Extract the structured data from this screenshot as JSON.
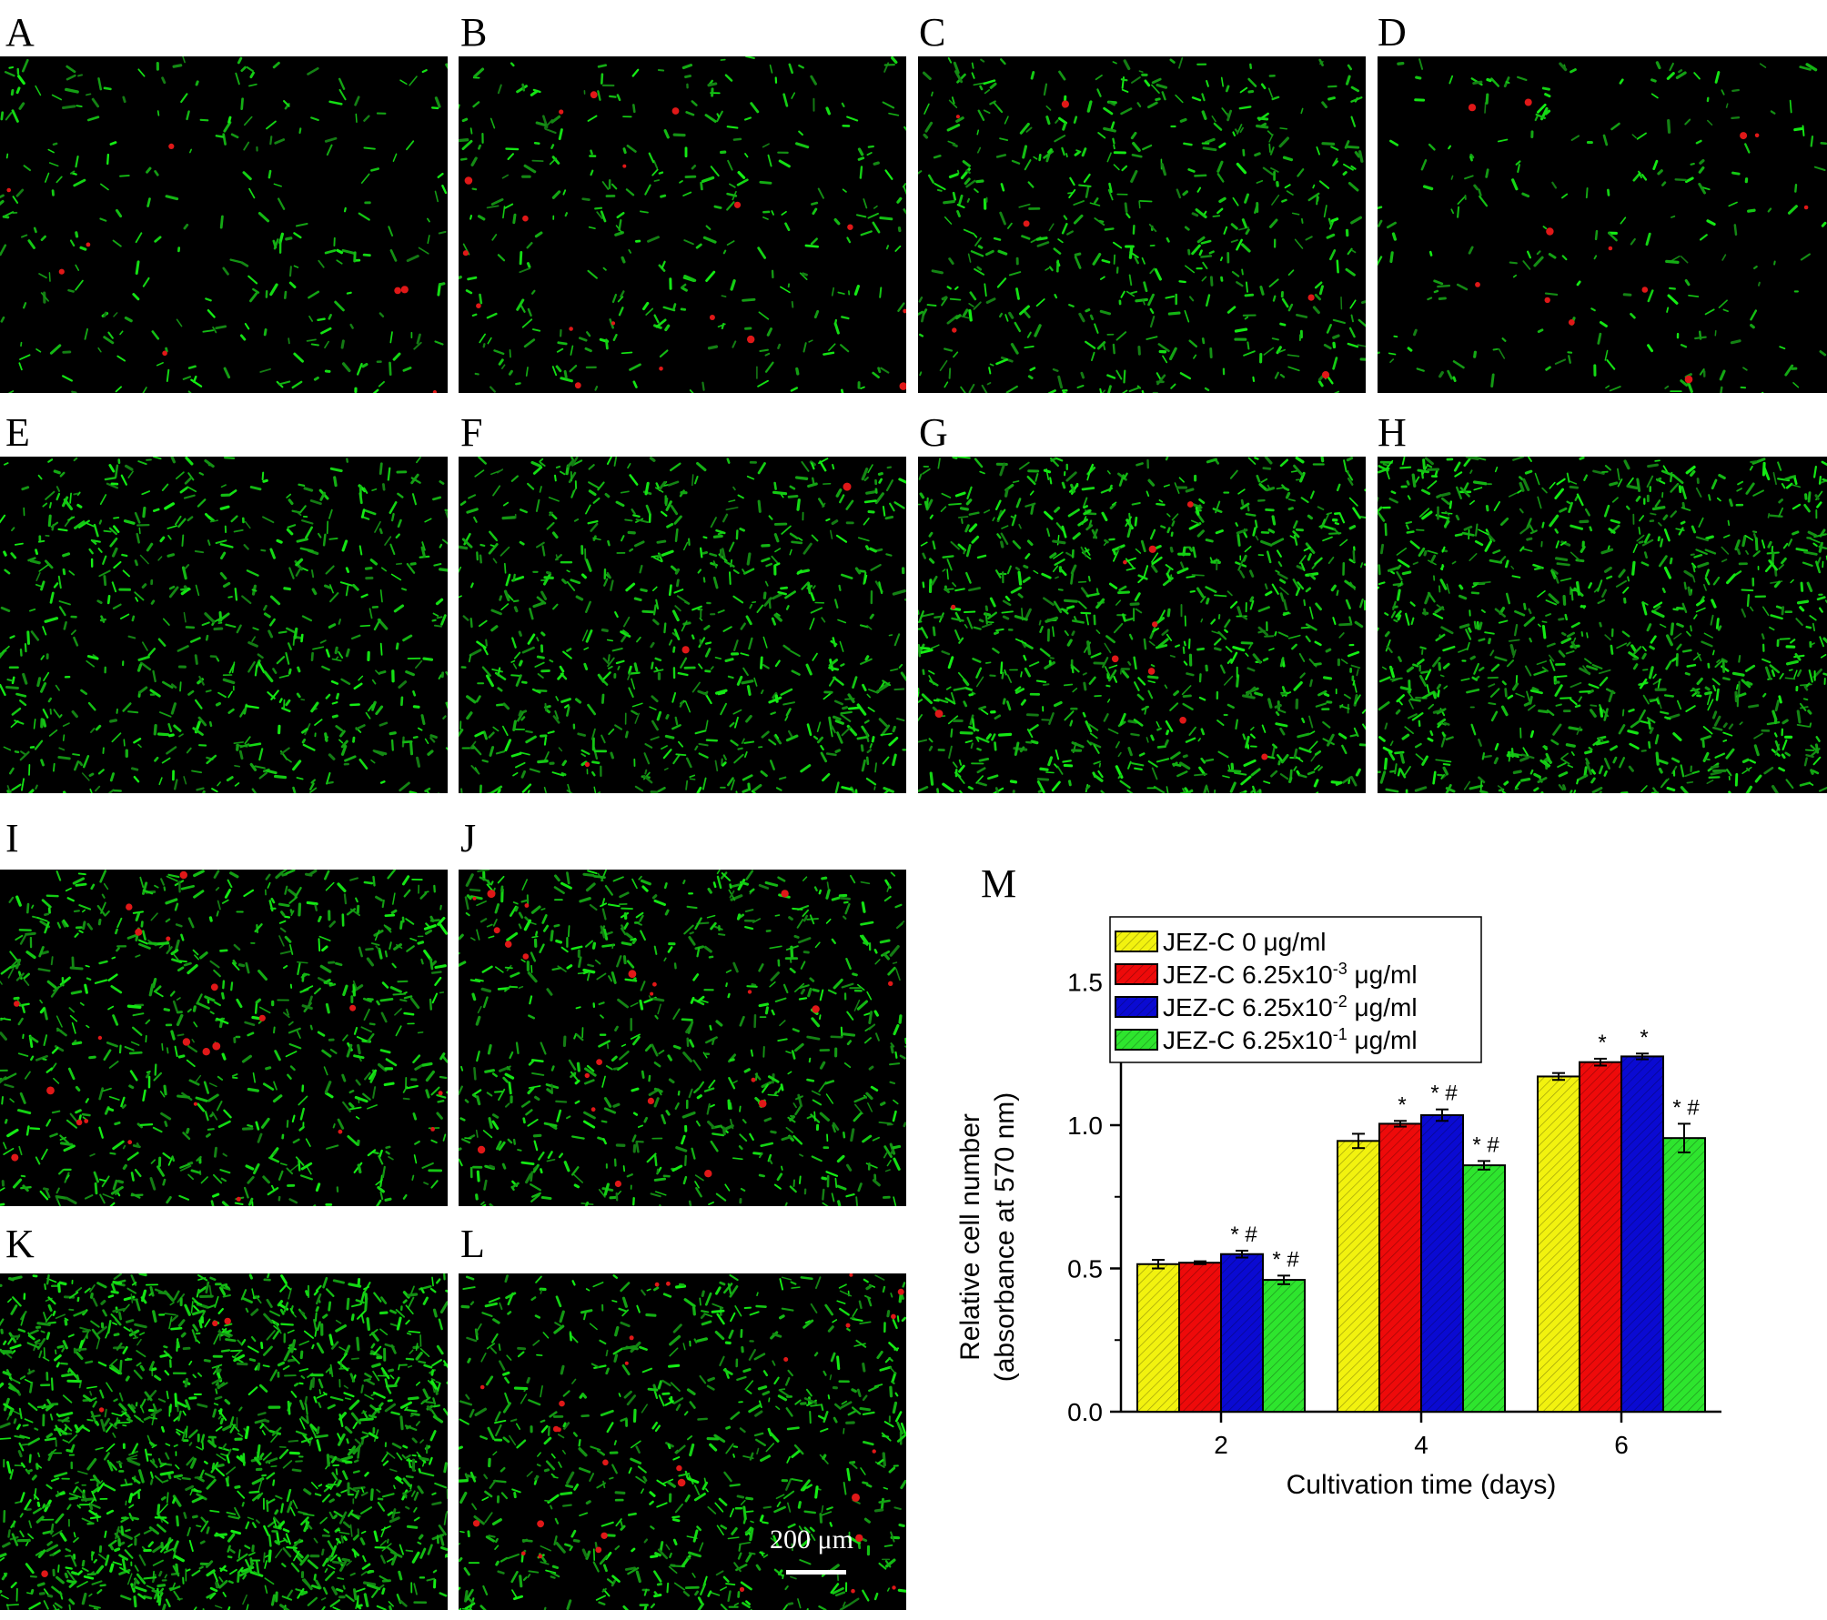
{
  "panels": [
    {
      "label": "A",
      "density": 260,
      "red": 8
    },
    {
      "label": "B",
      "density": 320,
      "red": 18
    },
    {
      "label": "C",
      "density": 520,
      "red": 6
    },
    {
      "label": "D",
      "density": 220,
      "red": 12
    },
    {
      "label": "E",
      "density": 620,
      "red": 0
    },
    {
      "label": "F",
      "density": 720,
      "red": 3
    },
    {
      "label": "G",
      "density": 900,
      "red": 10
    },
    {
      "label": "H",
      "density": 950,
      "red": 0
    },
    {
      "label": "I",
      "density": 700,
      "red": 22
    },
    {
      "label": "J",
      "density": 700,
      "red": 22
    },
    {
      "label": "K",
      "density": 1400,
      "red": 4
    },
    {
      "label": "L",
      "density": 700,
      "red": 28
    }
  ],
  "scale_bar": {
    "label": "200 μm"
  },
  "chart_panel_label": "M",
  "chart_data": {
    "type": "bar",
    "xlabel": "Cultivation time (days)",
    "ylabel_line1": "Relative cell number",
    "ylabel_line2": "(absorbance at 570 nm)",
    "categories": [
      "2",
      "4",
      "6"
    ],
    "ylim": [
      0,
      1.5
    ],
    "yticks": [
      "0.0",
      "0.5",
      "1.0",
      "1.5"
    ],
    "legend_position": "top-left",
    "series": [
      {
        "name": "JEZ-C 0 μg/ml",
        "legend_base": "JEZ-C 0 μg/ml",
        "legend_sup": "",
        "legend_unit": "",
        "color": "#f2f20f",
        "values": [
          0.515,
          0.945,
          1.17
        ],
        "errors": [
          0.015,
          0.025,
          0.012
        ],
        "annotations": [
          "",
          "",
          ""
        ]
      },
      {
        "name": "JEZ-C 6.25x10-3 μg/ml",
        "legend_base": "JEZ-C 6.25x10",
        "legend_sup": "-3",
        "legend_unit": " μg/ml",
        "color": "#ee0a0a",
        "values": [
          0.52,
          1.005,
          1.22
        ],
        "errors": [
          0.005,
          0.01,
          0.012
        ],
        "annotations": [
          "",
          "*",
          "*"
        ]
      },
      {
        "name": "JEZ-C 6.25x10-2 μg/ml",
        "legend_base": "JEZ-C 6.25x10",
        "legend_sup": "-2",
        "legend_unit": " μg/ml",
        "color": "#0a0ad2",
        "values": [
          0.55,
          1.035,
          1.24
        ],
        "errors": [
          0.012,
          0.02,
          0.01
        ],
        "annotations": [
          "* #",
          "* #",
          "*"
        ]
      },
      {
        "name": "JEZ-C 6.25x10-1 μg/ml",
        "legend_base": "JEZ-C 6.25x10",
        "legend_sup": "-1",
        "legend_unit": " μg/ml",
        "color": "#2ee52e",
        "values": [
          0.46,
          0.86,
          0.955
        ],
        "errors": [
          0.015,
          0.015,
          0.05
        ],
        "annotations": [
          "* #",
          "* #",
          "* #"
        ]
      }
    ]
  }
}
